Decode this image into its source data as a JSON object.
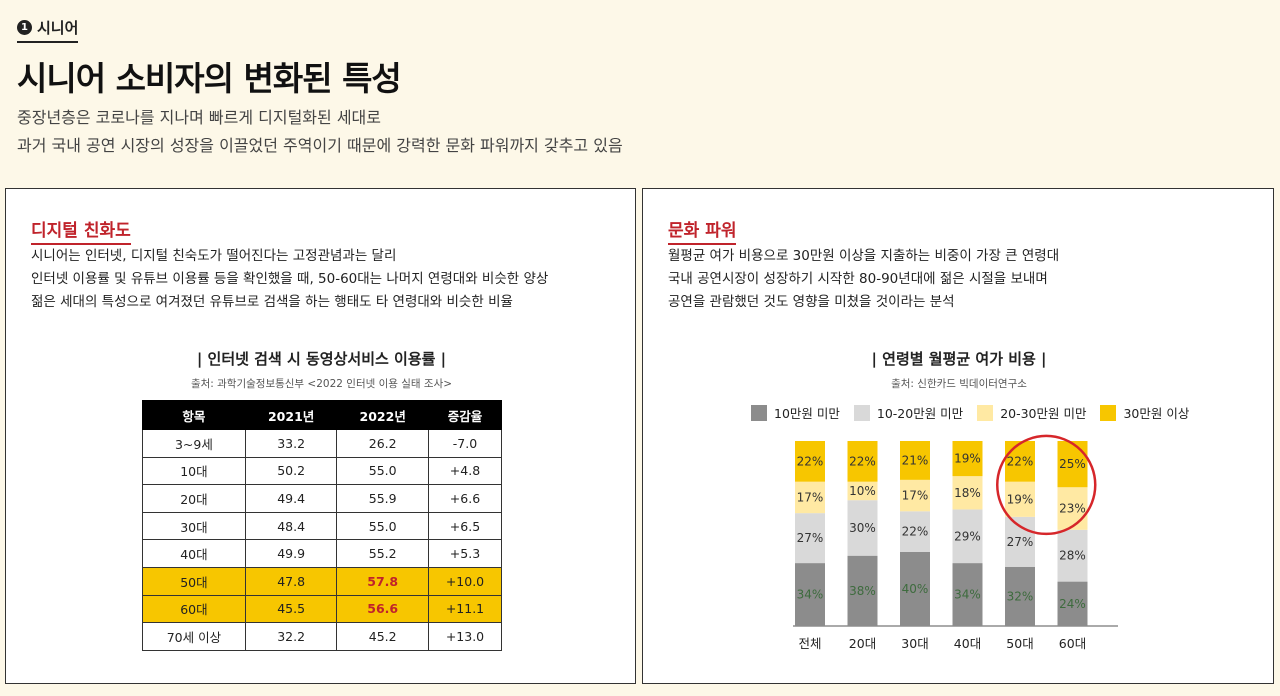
{
  "header": {
    "tag_num": "1",
    "tag_label": "시니어",
    "title": "시니어 소비자의 변화된 특성",
    "subtitle_line1": "중장년층은 코로나를 지나며 빠르게 디지털화된 세대로",
    "subtitle_line2": "과거 국내 공연 시장의 성장을 이끌었던 주역이기 때문에 강력한 문화 파워까지 갖추고 있음"
  },
  "left": {
    "title": "디지털 친화도",
    "desc": [
      "시니어는 인터넷, 디지털 친숙도가 떨어진다는 고정관념과는 달리",
      "인터넷 이용률 및 유튜브 이용률 등을 확인했을 때, 50-60대는 나머지 연령대와 비슷한 양상",
      "젊은 세대의 특성으로 여겨졌던 유튜브로 검색을 하는 행태도 타 연령대와 비슷한 비율"
    ],
    "table_title": "| 인터넷 검색 시 동영상서비스 이용률 |",
    "table_source": "출처: 과학기술정보통신부 <2022 인터넷 이용 실태 조사>",
    "headers": [
      "항목",
      "2021년",
      "2022년",
      "증감율"
    ],
    "rows": [
      [
        "3~9세",
        "33.2",
        "26.2",
        "-7.0"
      ],
      [
        "10대",
        "50.2",
        "55.0",
        "+4.8"
      ],
      [
        "20대",
        "49.4",
        "55.9",
        "+6.6"
      ],
      [
        "30대",
        "48.4",
        "55.0",
        "+6.5"
      ],
      [
        "40대",
        "49.9",
        "55.2",
        "+5.3"
      ],
      [
        "50대",
        "47.8",
        "57.8",
        "+10.0"
      ],
      [
        "60대",
        "45.5",
        "56.6",
        "+11.1"
      ],
      [
        "70세 이상",
        "32.2",
        "45.2",
        "+13.0"
      ]
    ]
  },
  "right": {
    "title": "문화 파워",
    "desc": [
      "월평균 여가 비용으로 30만원 이상을 지출하는 비중이 가장 큰 연령대",
      "국내 공연시장이 성장하기 시작한 80-90년대에 젊은 시절을 보내며",
      "공연을 관람했던 것도 영향을 미쳤을 것이라는 분석"
    ]
  },
  "colors": {
    "accent_red": "#c0232b",
    "highlight_yellow": "#f7c600",
    "series": [
      "#8c8c8c",
      "#d9d9d9",
      "#ffe9a3",
      "#f7c600"
    ]
  },
  "chart_data": {
    "type": "bar",
    "stacked": true,
    "title": "| 연령별 월평균 여가 비용 |",
    "source": "출처: 신한카드 빅데이터연구소",
    "categories": [
      "전체",
      "20대",
      "30대",
      "40대",
      "50대",
      "60대"
    ],
    "series": [
      {
        "name": "10만원 미만",
        "values": [
          34,
          38,
          40,
          34,
          32,
          24
        ]
      },
      {
        "name": "10-20만원 미만",
        "values": [
          27,
          30,
          22,
          29,
          27,
          28
        ]
      },
      {
        "name": "20-30만원 미만",
        "values": [
          17,
          10,
          17,
          18,
          19,
          23
        ]
      },
      {
        "name": "30만원 이상",
        "values": [
          22,
          22,
          21,
          19,
          22,
          25
        ]
      }
    ],
    "highlight_category": "50대",
    "ylim": [
      0,
      100
    ],
    "unit": "%"
  }
}
